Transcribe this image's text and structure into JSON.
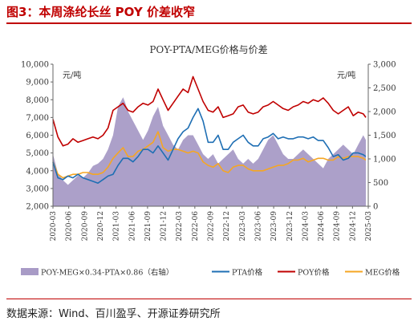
{
  "header": {
    "title": "图3：本周涤纶长丝 POY 价差收窄"
  },
  "footer": {
    "source": "数据来源：Wind、百川盈孚、开源证券研究所"
  },
  "chart_data": {
    "type": "line",
    "title": "POY-PTA/MEG价格与价差",
    "left_unit": "元/吨",
    "right_unit": "元/吨",
    "yleft_lim": [
      2000,
      10000
    ],
    "yleft_ticks": [
      "2,000",
      "3,000",
      "4,000",
      "5,000",
      "6,000",
      "7,000",
      "8,000",
      "9,000",
      "10,000"
    ],
    "yright_lim": [
      0,
      3000
    ],
    "yright_ticks": [
      "0",
      "500",
      "1,000",
      "1,500",
      "2,000",
      "2,500",
      "3,000"
    ],
    "x_ticks": [
      "2020-03",
      "2020-06",
      "2020-09",
      "2020-12",
      "2021-03",
      "2021-06",
      "2021-09",
      "2021-12",
      "2022-03",
      "2022-06",
      "2022-09",
      "2022-12",
      "2023-03",
      "2023-06",
      "2023-09",
      "2023-12",
      "2024-03",
      "2024-06",
      "2024-09",
      "2024-12",
      "2025-03"
    ],
    "grid": false,
    "legend_position": "bottom",
    "colors": {
      "spread": "#a89bc6",
      "pta": "#1f6fb4",
      "poy": "#c00000",
      "meg": "#f5a623"
    },
    "series": [
      {
        "name": "POY-MEG×0.34-PTA×0.86（右轴）",
        "type": "area",
        "axis": "right",
        "x": [
          2020.0,
          2020.083,
          2020.167,
          2020.25,
          2020.333,
          2020.417,
          2020.5,
          2020.583,
          2020.667,
          2020.75,
          2020.833,
          2020.917,
          2021.0,
          2021.083,
          2021.167,
          2021.2,
          2021.25,
          2021.333,
          2021.417,
          2021.5,
          2021.583,
          2021.667,
          2021.75,
          2021.833,
          2021.917,
          2022.0,
          2022.083,
          2022.167,
          2022.25,
          2022.333,
          2022.417,
          2022.5,
          2022.583,
          2022.667,
          2022.75,
          2022.833,
          2022.917,
          2023.0,
          2023.083,
          2023.167,
          2023.25,
          2023.333,
          2023.417,
          2023.5,
          2023.583,
          2023.667,
          2023.75,
          2023.833,
          2023.917,
          2024.0,
          2024.083,
          2024.167,
          2024.25,
          2024.333,
          2024.417,
          2024.5,
          2024.583,
          2024.667,
          2024.75,
          2024.833,
          2024.917,
          2025.0,
          2025.083,
          2025.167,
          2025.21
        ],
        "values": [
          1100,
          700,
          550,
          450,
          550,
          650,
          600,
          700,
          850,
          900,
          1000,
          1200,
          1500,
          2100,
          2300,
          2200,
          2000,
          1800,
          1600,
          1400,
          1600,
          1900,
          2100,
          1700,
          1500,
          1300,
          1200,
          1400,
          1500,
          1500,
          1300,
          1100,
          1000,
          1100,
          900,
          1000,
          1100,
          1200,
          1000,
          900,
          1000,
          900,
          1000,
          1200,
          1400,
          1500,
          1300,
          1100,
          1000,
          1000,
          1100,
          1200,
          1100,
          1000,
          900,
          800,
          1000,
          1100,
          1200,
          1300,
          1200,
          1100,
          1300,
          1500,
          1400
        ]
      },
      {
        "name": "PTA价格",
        "type": "line",
        "axis": "left",
        "x": [
          2020.0,
          2020.083,
          2020.167,
          2020.25,
          2020.333,
          2020.417,
          2020.5,
          2020.583,
          2020.667,
          2020.75,
          2020.833,
          2020.917,
          2021.0,
          2021.083,
          2021.167,
          2021.25,
          2021.333,
          2021.417,
          2021.5,
          2021.583,
          2021.667,
          2021.75,
          2021.833,
          2021.917,
          2022.0,
          2022.083,
          2022.167,
          2022.25,
          2022.333,
          2022.417,
          2022.5,
          2022.583,
          2022.667,
          2022.75,
          2022.833,
          2022.917,
          2023.0,
          2023.083,
          2023.167,
          2023.25,
          2023.333,
          2023.417,
          2023.5,
          2023.583,
          2023.667,
          2023.75,
          2023.833,
          2023.917,
          2024.0,
          2024.083,
          2024.167,
          2024.25,
          2024.333,
          2024.417,
          2024.5,
          2024.583,
          2024.667,
          2024.75,
          2024.833,
          2024.917,
          2025.0,
          2025.083,
          2025.167,
          2025.21
        ],
        "values": [
          4500,
          3600,
          3500,
          3700,
          3600,
          3800,
          3600,
          3500,
          3400,
          3300,
          3500,
          3700,
          3800,
          4300,
          4700,
          4700,
          4500,
          4800,
          5200,
          5200,
          5000,
          5400,
          5000,
          4600,
          5200,
          5800,
          6200,
          6400,
          7000,
          7500,
          6800,
          5600,
          5600,
          6000,
          5200,
          5200,
          5600,
          5800,
          6000,
          5600,
          5400,
          5400,
          5800,
          5900,
          6100,
          5800,
          5900,
          5800,
          5800,
          5900,
          5900,
          5800,
          5900,
          5700,
          5700,
          5300,
          4800,
          4900,
          4600,
          4700,
          5000,
          5000,
          4900,
          4800
        ]
      },
      {
        "name": "POY价格",
        "type": "line",
        "axis": "left",
        "x": [
          2020.0,
          2020.083,
          2020.167,
          2020.25,
          2020.333,
          2020.417,
          2020.5,
          2020.583,
          2020.667,
          2020.75,
          2020.833,
          2020.917,
          2021.0,
          2021.083,
          2021.167,
          2021.25,
          2021.333,
          2021.417,
          2021.5,
          2021.583,
          2021.667,
          2021.75,
          2021.833,
          2021.917,
          2022.0,
          2022.083,
          2022.167,
          2022.25,
          2022.333,
          2022.417,
          2022.5,
          2022.583,
          2022.667,
          2022.75,
          2022.833,
          2022.917,
          2023.0,
          2023.083,
          2023.167,
          2023.25,
          2023.333,
          2023.417,
          2023.5,
          2023.583,
          2023.667,
          2023.75,
          2023.833,
          2023.917,
          2024.0,
          2024.083,
          2024.167,
          2024.25,
          2024.333,
          2024.417,
          2024.5,
          2024.583,
          2024.667,
          2024.75,
          2024.833,
          2024.917,
          2025.0,
          2025.083,
          2025.167,
          2025.21
        ],
        "values": [
          6900,
          5900,
          5400,
          5500,
          5800,
          5600,
          5700,
          5800,
          5900,
          5800,
          6000,
          6400,
          7400,
          7600,
          7800,
          7400,
          7300,
          7600,
          7800,
          7700,
          7900,
          8600,
          8000,
          7400,
          7800,
          8200,
          8600,
          8400,
          9300,
          8600,
          7900,
          7400,
          7300,
          7600,
          7000,
          7100,
          7200,
          7600,
          7700,
          7300,
          7200,
          7300,
          7600,
          7700,
          7900,
          7700,
          7500,
          7400,
          7600,
          7700,
          7900,
          7800,
          8000,
          7900,
          8100,
          7800,
          7400,
          7200,
          7400,
          7600,
          7100,
          7300,
          7200,
          7000
        ]
      },
      {
        "name": "MEG价格",
        "type": "line",
        "axis": "left",
        "x": [
          2020.0,
          2020.083,
          2020.167,
          2020.25,
          2020.333,
          2020.417,
          2020.5,
          2020.583,
          2020.667,
          2020.75,
          2020.833,
          2020.917,
          2021.0,
          2021.083,
          2021.167,
          2021.25,
          2021.333,
          2021.417,
          2021.5,
          2021.583,
          2021.667,
          2021.75,
          2021.833,
          2021.917,
          2022.0,
          2022.083,
          2022.167,
          2022.25,
          2022.333,
          2022.417,
          2022.5,
          2022.583,
          2022.667,
          2022.75,
          2022.833,
          2022.917,
          2023.0,
          2023.083,
          2023.167,
          2023.25,
          2023.333,
          2023.417,
          2023.5,
          2023.583,
          2023.667,
          2023.75,
          2023.833,
          2023.917,
          2024.0,
          2024.083,
          2024.167,
          2024.25,
          2024.333,
          2024.417,
          2024.5,
          2024.583,
          2024.667,
          2024.75,
          2024.833,
          2024.917,
          2025.0,
          2025.083,
          2025.167,
          2025.21
        ],
        "values": [
          4500,
          3800,
          3600,
          3700,
          3800,
          3800,
          3900,
          3900,
          3800,
          3800,
          3900,
          4200,
          4700,
          5000,
          5300,
          4800,
          4800,
          5100,
          5200,
          5400,
          5600,
          6200,
          5300,
          5100,
          5200,
          5200,
          5100,
          5000,
          5100,
          5000,
          4500,
          4300,
          4200,
          4400,
          4000,
          3900,
          4200,
          4300,
          4300,
          4100,
          4000,
          4000,
          4000,
          4100,
          4200,
          4300,
          4300,
          4400,
          4600,
          4600,
          4700,
          4500,
          4600,
          4700,
          4700,
          4600,
          4600,
          4800,
          4700,
          4800,
          4800,
          4800,
          4700,
          4600
        ]
      }
    ]
  }
}
